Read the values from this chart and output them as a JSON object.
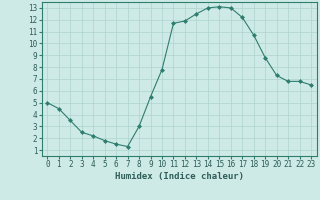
{
  "x": [
    0,
    1,
    2,
    3,
    4,
    5,
    6,
    7,
    8,
    9,
    10,
    11,
    12,
    13,
    14,
    15,
    16,
    17,
    18,
    19,
    20,
    21,
    22,
    23
  ],
  "y": [
    5,
    4.5,
    3.5,
    2.5,
    2.2,
    1.8,
    1.5,
    1.3,
    3.0,
    5.5,
    7.8,
    11.7,
    11.9,
    12.5,
    13.0,
    13.1,
    13.0,
    12.2,
    10.7,
    8.8,
    7.3,
    6.8,
    6.8,
    6.5
  ],
  "xlabel": "Humidex (Indice chaleur)",
  "xlim": [
    -0.5,
    23.5
  ],
  "ylim": [
    0.5,
    13.5
  ],
  "xticks": [
    0,
    1,
    2,
    3,
    4,
    5,
    6,
    7,
    8,
    9,
    10,
    11,
    12,
    13,
    14,
    15,
    16,
    17,
    18,
    19,
    20,
    21,
    22,
    23
  ],
  "yticks": [
    1,
    2,
    3,
    4,
    5,
    6,
    7,
    8,
    9,
    10,
    11,
    12,
    13
  ],
  "line_color": "#2e7d6e",
  "marker": "D",
  "marker_size": 2.0,
  "bg_color": "#ceeae7",
  "grid_color": "#aed4d0",
  "font_color": "#2e5d58",
  "tick_fontsize": 5.5,
  "label_fontsize": 6.5
}
